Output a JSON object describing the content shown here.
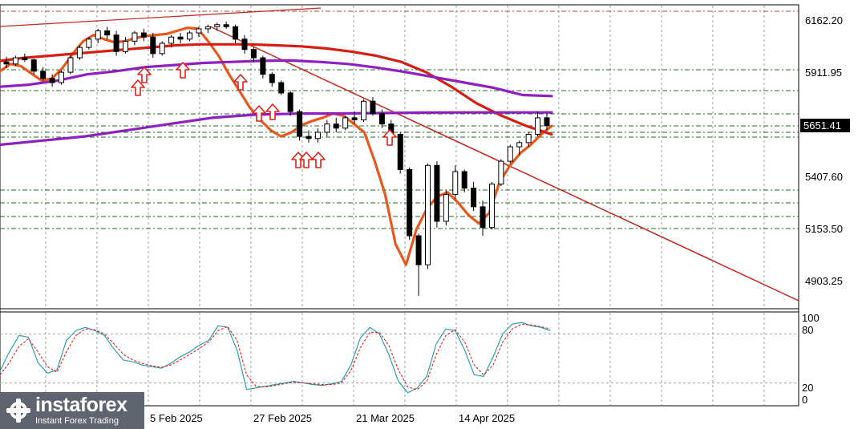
{
  "chart_data": {
    "type": "candlestick",
    "price_axis": {
      "ticks": [
        "6162.20",
        "5911.95",
        "5651.41",
        "5407.60",
        "5153.50",
        "4903.25"
      ],
      "current_price": "5651.41",
      "ylim": [
        4780,
        6210
      ]
    },
    "oscillator_axis": {
      "ticks": [
        "100",
        "80",
        "20",
        "0"
      ],
      "ylim": [
        0,
        100
      ]
    },
    "x_labels": [
      "5 Feb 2025",
      "27 Feb 2025",
      "21 Mar 2025",
      "14 Apr 2025"
    ],
    "candles": [
      [
        5960,
        5985,
        5930,
        5950
      ],
      [
        5950,
        5990,
        5940,
        5980
      ],
      [
        5980,
        6000,
        5960,
        5970
      ],
      [
        5970,
        5975,
        5900,
        5915
      ],
      [
        5915,
        5935,
        5870,
        5880
      ],
      [
        5880,
        5900,
        5840,
        5860
      ],
      [
        5860,
        5920,
        5850,
        5910
      ],
      [
        5910,
        5990,
        5900,
        5980
      ],
      [
        5980,
        6040,
        5970,
        6030
      ],
      [
        6030,
        6080,
        6020,
        6070
      ],
      [
        6070,
        6120,
        6050,
        6110
      ],
      [
        6110,
        6130,
        6070,
        6090
      ],
      [
        6090,
        6110,
        5990,
        6010
      ],
      [
        6010,
        6080,
        6000,
        6060
      ],
      [
        6060,
        6110,
        6040,
        6100
      ],
      [
        6100,
        6120,
        6060,
        6080
      ],
      [
        6080,
        6100,
        5980,
        6000
      ],
      [
        6000,
        6060,
        5990,
        6050
      ],
      [
        6050,
        6090,
        6030,
        6080
      ],
      [
        6080,
        6100,
        6050,
        6070
      ],
      [
        6070,
        6110,
        6060,
        6100
      ],
      [
        6100,
        6130,
        6080,
        6120
      ],
      [
        6120,
        6140,
        6100,
        6130
      ],
      [
        6130,
        6150,
        6110,
        6140
      ],
      [
        6140,
        6155,
        6120,
        6130
      ],
      [
        6130,
        6140,
        6050,
        6070
      ],
      [
        6070,
        6090,
        6000,
        6020
      ],
      [
        6020,
        6030,
        5960,
        5980
      ],
      [
        5980,
        5990,
        5880,
        5900
      ],
      [
        5900,
        5910,
        5840,
        5860
      ],
      [
        5860,
        5870,
        5800,
        5810
      ],
      [
        5810,
        5820,
        5700,
        5720
      ],
      [
        5720,
        5730,
        5580,
        5600
      ],
      [
        5600,
        5630,
        5570,
        5590
      ],
      [
        5590,
        5640,
        5570,
        5620
      ],
      [
        5620,
        5680,
        5600,
        5660
      ],
      [
        5660,
        5690,
        5620,
        5640
      ],
      [
        5640,
        5700,
        5630,
        5690
      ],
      [
        5690,
        5720,
        5660,
        5680
      ],
      [
        5680,
        5780,
        5670,
        5770
      ],
      [
        5770,
        5790,
        5700,
        5710
      ],
      [
        5710,
        5730,
        5640,
        5660
      ],
      [
        5660,
        5680,
        5590,
        5610
      ],
      [
        5610,
        5620,
        5420,
        5440
      ],
      [
        5440,
        5450,
        5100,
        5120
      ],
      [
        5120,
        5130,
        4830,
        4980
      ],
      [
        4980,
        5470,
        4960,
        5460
      ],
      [
        5460,
        5480,
        5160,
        5190
      ],
      [
        5190,
        5340,
        5170,
        5320
      ],
      [
        5320,
        5460,
        5300,
        5430
      ],
      [
        5430,
        5440,
        5330,
        5350
      ],
      [
        5350,
        5380,
        5240,
        5260
      ],
      [
        5260,
        5290,
        5120,
        5160
      ],
      [
        5160,
        5380,
        5150,
        5370
      ],
      [
        5370,
        5490,
        5360,
        5480
      ],
      [
        5480,
        5560,
        5470,
        5550
      ],
      [
        5550,
        5580,
        5510,
        5570
      ],
      [
        5570,
        5620,
        5550,
        5610
      ],
      [
        5610,
        5720,
        5600,
        5690
      ],
      [
        5690,
        5710,
        5630,
        5651.41
      ]
    ],
    "series": [
      {
        "values": [
          5915,
          5950,
          5940,
          5905,
          5870,
          5880,
          5930,
          6000,
          6060,
          6090,
          6070,
          6055,
          6060,
          6075,
          6085,
          6090,
          6095,
          6110,
          6125,
          6120,
          6060,
          5990,
          5900,
          5820,
          5740,
          5680,
          5630,
          5600,
          5620,
          5655,
          5675,
          5690,
          5710,
          5700,
          5660,
          5620,
          5480,
          5320,
          5080,
          4980,
          5150,
          5250,
          5310,
          5330,
          5280,
          5220,
          5180,
          5230,
          5380,
          5460,
          5520,
          5560,
          5610,
          5651
        ]
      },
      {
        "values": [
          5965,
          5980,
          5990,
          6000,
          6010,
          6020,
          6030,
          6040,
          6045,
          6045,
          6045,
          6040,
          6035,
          6025,
          6010,
          5990,
          5960,
          5910,
          5840,
          5760,
          5700,
          5650,
          5610
        ]
      },
      {
        "values": [
          5840,
          5850,
          5870,
          5900,
          5915,
          5935,
          5945,
          5955,
          5960,
          5965,
          5967,
          5960,
          5950,
          5932,
          5910,
          5885,
          5860,
          5835,
          5800,
          5795
        ]
      },
      {
        "values": [
          5560,
          5580,
          5600,
          5630,
          5660,
          5690,
          5705,
          5710,
          5711,
          5713,
          5715,
          5716,
          5716,
          5716
        ]
      }
    ],
    "oscillator": {
      "main": [
        35,
        58,
        78,
        76,
        45,
        32,
        36,
        72,
        84,
        88,
        84,
        78,
        62,
        48,
        46,
        42,
        40,
        38,
        44,
        52,
        58,
        66,
        72,
        90,
        88,
        60,
        12,
        14,
        16,
        18,
        20,
        22,
        20,
        18,
        17,
        19,
        22,
        42,
        75,
        88,
        80,
        55,
        22,
        8,
        14,
        28,
        68,
        86,
        84,
        60,
        30,
        28,
        52,
        80,
        92,
        94,
        90,
        88,
        84
      ],
      "signal": [
        30,
        45,
        65,
        74,
        58,
        40,
        33,
        58,
        78,
        86,
        85,
        80,
        68,
        55,
        48,
        44,
        41,
        39,
        42,
        48,
        55,
        62,
        70,
        84,
        89,
        72,
        30,
        16,
        15,
        17,
        19,
        21,
        20,
        19,
        18,
        18,
        20,
        35,
        63,
        82,
        82,
        66,
        36,
        15,
        12,
        22,
        55,
        78,
        85,
        70,
        42,
        30,
        42,
        70,
        86,
        92,
        91,
        89,
        86
      ]
    }
  }
}
